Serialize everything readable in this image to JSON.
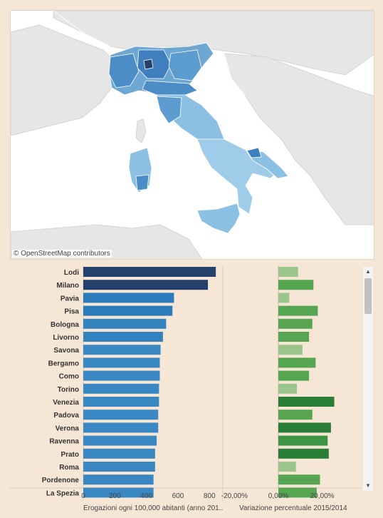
{
  "map": {
    "attribution": "© OpenStreetMap contributors"
  },
  "chart_data": [
    {
      "type": "bar",
      "orientation": "horizontal",
      "categories": [
        "Lodi",
        "Milano",
        "Pavia",
        "Pisa",
        "Bologna",
        "Livorno",
        "Savona",
        "Bergamo",
        "Como",
        "Torino",
        "Venezia",
        "Padova",
        "Verona",
        "Ravenna",
        "Prato",
        "Roma",
        "Pordenone",
        "La Spezia"
      ],
      "values": [
        840,
        790,
        575,
        565,
        525,
        505,
        490,
        485,
        485,
        480,
        480,
        475,
        475,
        465,
        455,
        455,
        445,
        445
      ],
      "colors": [
        "#24416e",
        "#24416e",
        "#2b7bbb",
        "#2b7bbb",
        "#3282bf",
        "#3282bf",
        "#3a88c3",
        "#3a88c3",
        "#3a88c3",
        "#3a88c3",
        "#3a88c3",
        "#3a88c3",
        "#3a88c3",
        "#3a88c3",
        "#3a88c3",
        "#3a88c3",
        "#3a88c3",
        "#3a88c3"
      ],
      "xlabel": "Erogazioni ogni 100,000 abitanti (anno 201..",
      "xticks": [
        "0",
        "200",
        "400",
        "600",
        "800"
      ],
      "xlim": [
        0,
        880
      ]
    },
    {
      "type": "bar",
      "orientation": "horizontal",
      "categories": [
        "Lodi",
        "Milano",
        "Pavia",
        "Pisa",
        "Bologna",
        "Livorno",
        "Savona",
        "Bergamo",
        "Como",
        "Torino",
        "Venezia",
        "Padova",
        "Verona",
        "Ravenna",
        "Prato",
        "Roma",
        "Pordenone",
        "La Spezia"
      ],
      "values": [
        9,
        16,
        5,
        18,
        15.5,
        14,
        11,
        17,
        14,
        8.5,
        25.5,
        15.5,
        24,
        22.5,
        23,
        8,
        19,
        17.5
      ],
      "colors": [
        "#9bc58a",
        "#55a551",
        "#9bc58a",
        "#55a551",
        "#55a551",
        "#55a551",
        "#9bc58a",
        "#55a551",
        "#55a551",
        "#9bc58a",
        "#2a7d34",
        "#55a551",
        "#2a7d34",
        "#3d9444",
        "#2a7d34",
        "#9bc58a",
        "#55a551",
        "#55a551"
      ],
      "xlabel": "Variazione percentuale 2015/2014",
      "xticks": [
        "-20,00%",
        "0,00%",
        "20,00%"
      ],
      "xlim": [
        -25,
        38
      ]
    }
  ]
}
